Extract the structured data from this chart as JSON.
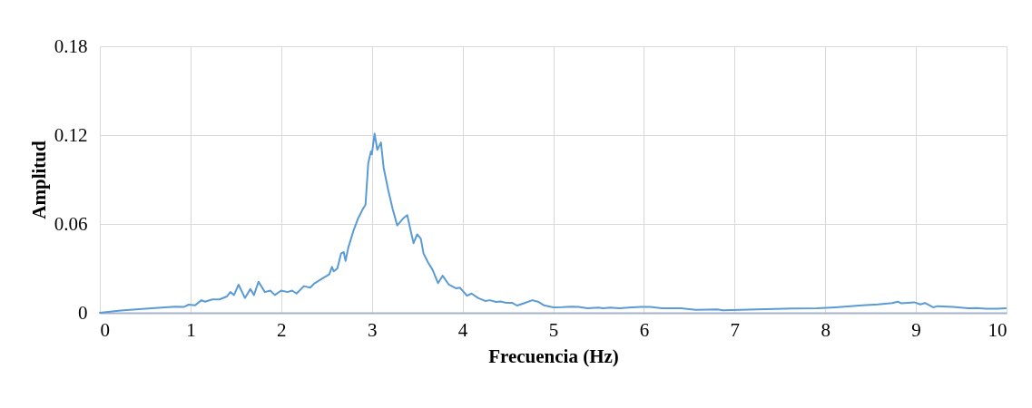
{
  "chart_data": {
    "type": "line",
    "xlabel": "Frecuencia (Hz)",
    "ylabel": "Amplitud",
    "xlim": [
      0,
      10
    ],
    "xticks": [
      0,
      1,
      2,
      3,
      4,
      5,
      6,
      7,
      8,
      9,
      10
    ],
    "ylim": [
      0,
      0.18
    ],
    "yticks": [
      0,
      0.06,
      0.12,
      0.18
    ],
    "grid": true,
    "series": [
      {
        "color": "#5b9bd5",
        "x": [
          0,
          0.23,
          0.57,
          0.83,
          0.93,
          0.98,
          1.05,
          1.12,
          1.16,
          1.24,
          1.32,
          1.4,
          1.44,
          1.48,
          1.53,
          1.6,
          1.66,
          1.7,
          1.75,
          1.82,
          1.88,
          1.93,
          2.0,
          2.07,
          2.12,
          2.17,
          2.25,
          2.32,
          2.37,
          2.45,
          2.53,
          2.56,
          2.58,
          2.62,
          2.66,
          2.69,
          2.71,
          2.74,
          2.8,
          2.85,
          2.9,
          2.93,
          2.96,
          2.99,
          3.0,
          3.03,
          3.06,
          3.1,
          3.13,
          3.18,
          3.23,
          3.28,
          3.35,
          3.39,
          3.43,
          3.46,
          3.5,
          3.54,
          3.57,
          3.62,
          3.67,
          3.73,
          3.78,
          3.85,
          3.93,
          3.97,
          4.05,
          4.1,
          4.17,
          4.25,
          4.3,
          4.37,
          4.42,
          4.48,
          4.55,
          4.6,
          4.67,
          4.77,
          4.84,
          4.9,
          5.0,
          5.1,
          5.2,
          5.28,
          5.38,
          5.5,
          5.55,
          5.63,
          5.73,
          5.83,
          5.96,
          6.07,
          6.2,
          6.41,
          6.57,
          6.81,
          6.87,
          7.24,
          7.64,
          7.91,
          8.11,
          8.41,
          8.58,
          8.74,
          8.8,
          8.84,
          8.98,
          9.05,
          9.1,
          9.19,
          9.24,
          9.41,
          9.58,
          9.67,
          9.77,
          9.9,
          9.99
        ],
        "values": [
          0,
          0.0016,
          0.003,
          0.0042,
          0.004,
          0.0055,
          0.005,
          0.0085,
          0.0075,
          0.009,
          0.009,
          0.011,
          0.014,
          0.012,
          0.019,
          0.01,
          0.016,
          0.012,
          0.021,
          0.014,
          0.015,
          0.012,
          0.015,
          0.014,
          0.015,
          0.013,
          0.018,
          0.017,
          0.02,
          0.023,
          0.026,
          0.031,
          0.028,
          0.03,
          0.04,
          0.041,
          0.035,
          0.044,
          0.056,
          0.064,
          0.07,
          0.073,
          0.101,
          0.109,
          0.107,
          0.121,
          0.11,
          0.115,
          0.098,
          0.083,
          0.07,
          0.059,
          0.064,
          0.066,
          0.055,
          0.047,
          0.053,
          0.05,
          0.04,
          0.034,
          0.029,
          0.02,
          0.025,
          0.019,
          0.0165,
          0.017,
          0.0115,
          0.013,
          0.01,
          0.008,
          0.0085,
          0.0073,
          0.0077,
          0.0067,
          0.0067,
          0.0049,
          0.0063,
          0.0085,
          0.0073,
          0.005,
          0.0037,
          0.0038,
          0.0042,
          0.004,
          0.003,
          0.0035,
          0.003,
          0.0035,
          0.003,
          0.0035,
          0.004,
          0.004,
          0.003,
          0.003,
          0.002,
          0.0023,
          0.0017,
          0.0023,
          0.0029,
          0.003,
          0.0037,
          0.005,
          0.0057,
          0.0066,
          0.0075,
          0.0064,
          0.0071,
          0.0057,
          0.0066,
          0.0037,
          0.0045,
          0.004,
          0.003,
          0.0032,
          0.0028,
          0.0028,
          0.003
        ]
      }
    ]
  }
}
